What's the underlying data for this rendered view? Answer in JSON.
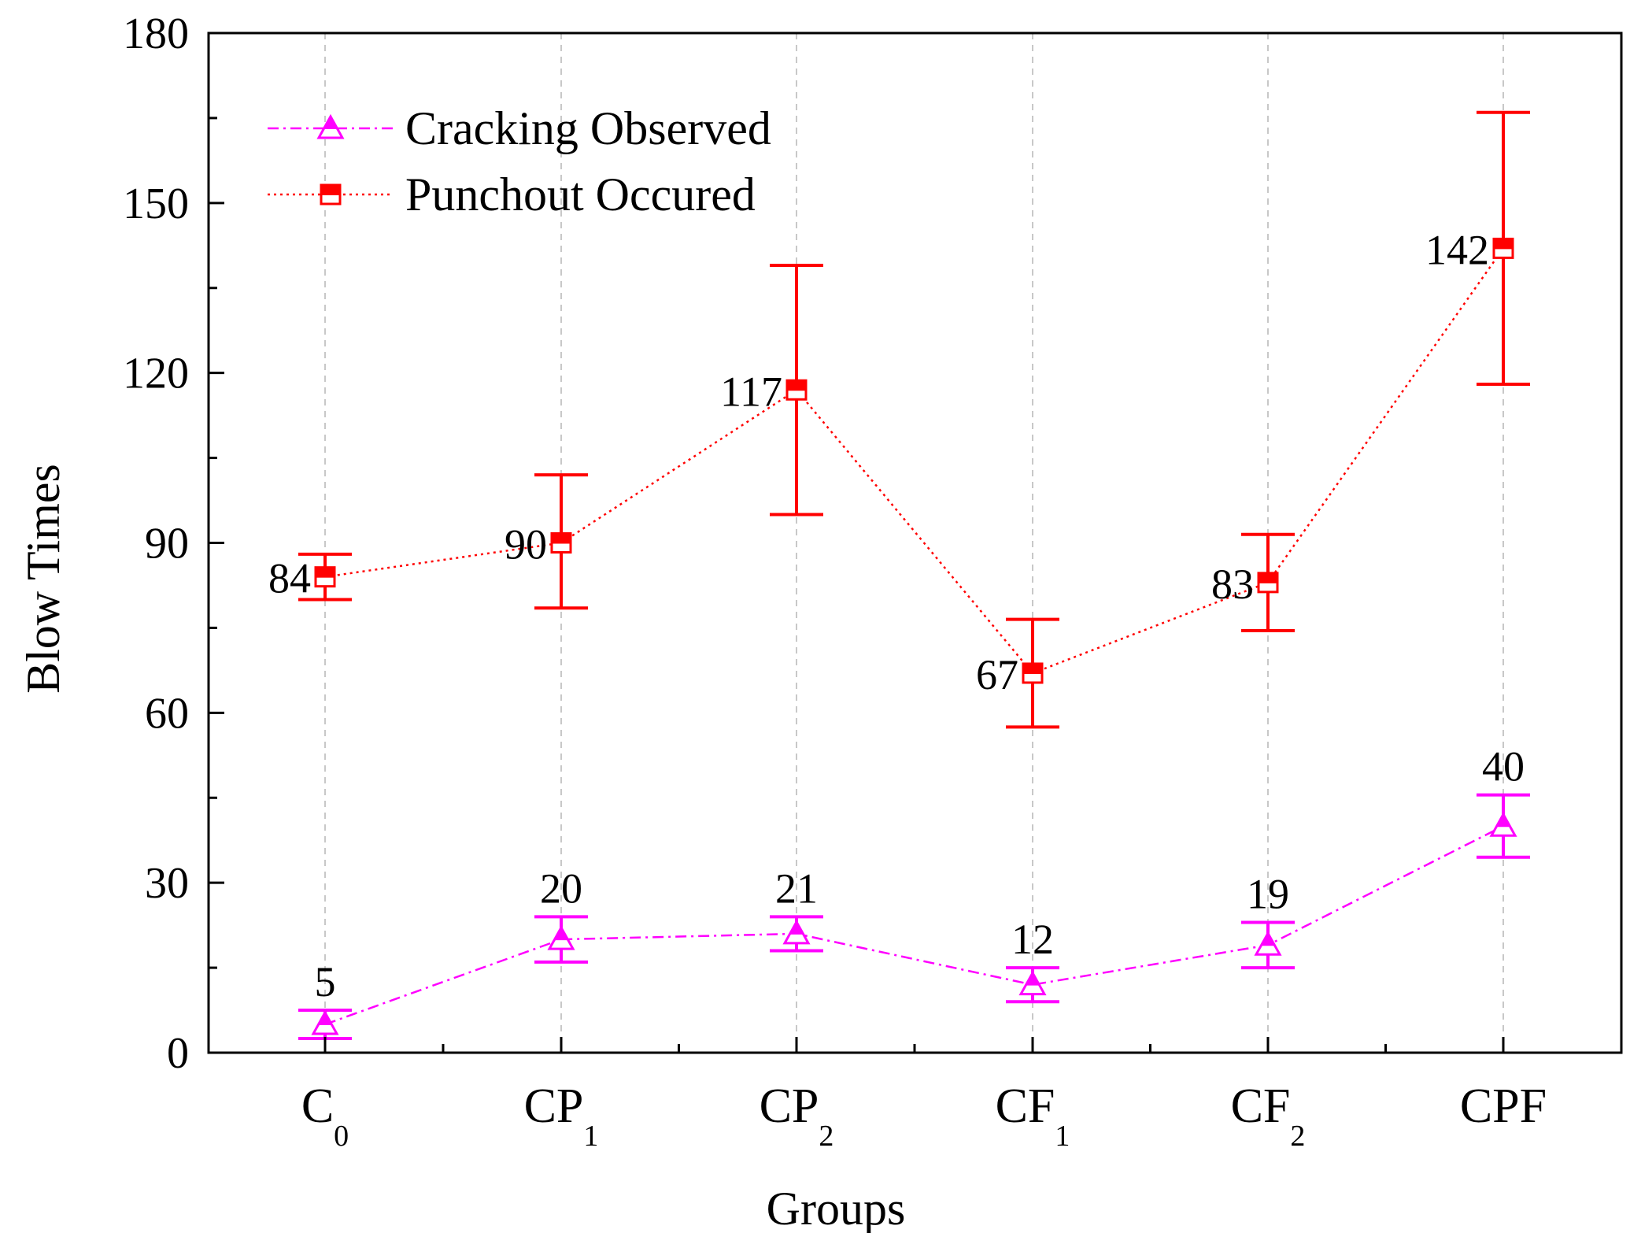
{
  "chart_data": {
    "type": "line",
    "title": "",
    "xlabel": "Groups",
    "ylabel": "Blow Times",
    "ylim": [
      0,
      180
    ],
    "yticks": [
      0,
      30,
      60,
      90,
      120,
      150,
      180
    ],
    "categories": [
      {
        "main": "C",
        "sub": "0"
      },
      {
        "main": "CP",
        "sub": "1"
      },
      {
        "main": "CP",
        "sub": "2"
      },
      {
        "main": "CF",
        "sub": "1"
      },
      {
        "main": "CF",
        "sub": "2"
      },
      {
        "main": "CPF",
        "sub": ""
      }
    ],
    "grid": "vertical dashed at categories",
    "legend_position": "top-left",
    "series": [
      {
        "name": "Cracking Observed",
        "color": "#ff00ff",
        "marker": "triangle",
        "line_style": "dash-dot",
        "values": [
          5,
          20,
          21,
          12,
          19,
          40
        ],
        "labels": [
          "5",
          "20",
          "21",
          "12",
          "19",
          "40"
        ],
        "err_low": [
          2.5,
          16,
          18,
          9,
          15,
          34.5
        ],
        "err_high": [
          7.5,
          24,
          24,
          15,
          23,
          45.5
        ]
      },
      {
        "name": "Punchout Occured",
        "color": "#ff0000",
        "marker": "square",
        "line_style": "dotted",
        "values": [
          84,
          90,
          117,
          67,
          83,
          142
        ],
        "labels": [
          "84",
          "90",
          "117",
          "67",
          "83",
          "142"
        ],
        "err_low": [
          80,
          78.5,
          95,
          57.5,
          74.5,
          118
        ],
        "err_high": [
          88,
          102,
          139,
          76.5,
          91.5,
          166
        ]
      }
    ]
  }
}
